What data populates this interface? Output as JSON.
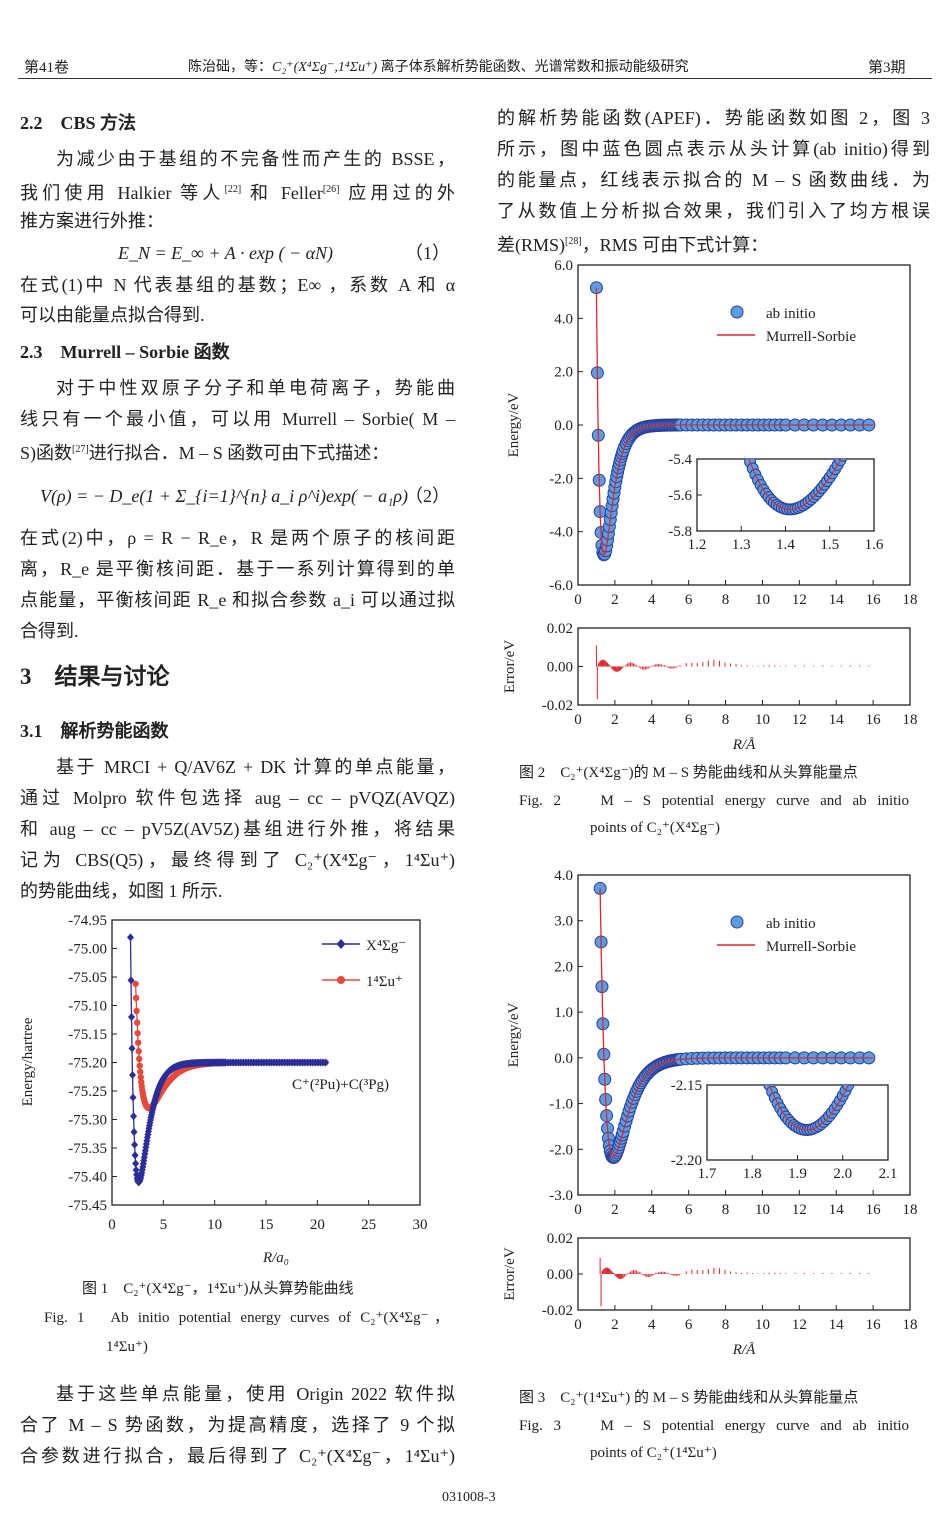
{
  "header": {
    "volume": "第41卷",
    "title_prefix": "陈治础，等：",
    "title_formula": "C₂⁺(X⁴Σg⁻,1⁴Σu⁺)",
    "title_suffix": "离子体系解析势能函数、光谱常数和振动能级研究",
    "issue": "第3期"
  },
  "left": {
    "s22": "2.2　CBS 方法",
    "p1": [
      "为减少由于基组的不完备性而产生的 BSSE，",
      "我们使用 Halkier 等人",
      "[22]",
      "和 Feller",
      "[26]",
      "应用过的外",
      "推方案进行外推："
    ],
    "eq1": "E_N = E_∞ + A · exp ( − αN)",
    "eq1_no": "（1）",
    "p2": [
      "在式(1)中 N 代表基组的基数；E∞ ，系数 A 和 α",
      "可以由能量点拟合得到."
    ],
    "s23": "2.3　Murrell – Sorbie 函数",
    "p3": [
      "对于中性双原子分子和单电荷离子，势能曲",
      "线只有一个最小值，可以用 Murrell – Sorbie( M –",
      "S)函数",
      "[27]",
      "进行拟合．M – S 函数可由下式描述："
    ],
    "eq2": "V(ρ) = − D_e(1 + Σ_{i=1}^{n} a_i ρ^i)exp( − a₁ρ)",
    "eq2_no": "（2）",
    "p4": [
      "在式(2)中，ρ = R − R_e，R 是两个原子的核间距",
      "离，R_e 是平衡核间距．基于一系列计算得到的单",
      "点能量，平衡核间距 R_e 和拟合参数 a_i 可以通过拟",
      "合得到."
    ],
    "s3": "3　结果与讨论",
    "s31": "3.1　解析势能函数",
    "p5": [
      "基于 MRCI + Q/AV6Z + DK 计算的单点能量，",
      "通过 Molpro 软件包选择 aug – cc – pVQZ(AVQZ)",
      "和 aug – cc – pV5Z(AV5Z)基组进行外推，将结果",
      "记为 CBS(Q5)，最终得到了 C₂⁺(X⁴Σg⁻，1⁴Σu⁺)",
      "的势能曲线，如图 1 所示."
    ],
    "fig1_cap_cn": "图 1　C₂⁺(X⁴Σg⁻，1⁴Σu⁺)从头算势能曲线",
    "fig1_cap_en1": "Fig. 1　Ab initio potential energy curves of C₂⁺(X⁴Σg⁻，",
    "fig1_cap_en2": "1⁴Σu⁺)",
    "p6": [
      "基于这些单点能量，使用 Origin 2022 软件拟",
      "合了 M – S 势函数，为提高精度，选择了 9 个拟",
      "合参数进行拟合，最后得到了 C₂⁺(X⁴Σg⁻，1⁴Σu⁺)"
    ]
  },
  "right": {
    "p1": [
      "的解析势能函数(APEF)．势能函数如图 2，图 3",
      "所示，图中蓝色圆点表示从头计算(ab initio)得到",
      "的能量点，红线表示拟合的 M – S 函数曲线．为",
      "了从数值上分析拟合效果，我们引入了均方根误",
      "差(RMS)",
      "[28]",
      "，RMS 可由下式计算："
    ],
    "fig2_cap_cn": "图 2　C₂⁺(X⁴Σg⁻)的 M – S 势能曲线和从头算能量点",
    "fig2_cap_en1": "Fig.  2　 M – S  potential  energy  curve  and  ab  initio",
    "fig2_cap_en2": "points of C₂⁺(X⁴Σg⁻)",
    "fig3_cap_cn": "图 3　C₂⁺(1⁴Σu⁺) 的 M – S 势能曲线和从头算能量点",
    "fig3_cap_en1": "Fig.  3　 M – S  potential  energy  curve  and  ab  initio",
    "fig3_cap_en2": "points of C₂⁺(1⁴Σu⁺)"
  },
  "footer": {
    "page": "031008-3"
  },
  "colors": {
    "blue": "#2b2e9a",
    "red": "#e8483a",
    "dot": "#5a9de0",
    "dot_edge": "#2c3d99",
    "fit": "#e0262b"
  },
  "chart_data": [
    {
      "id": "fig1",
      "type": "scatter-line",
      "xlabel": "R/a₀",
      "ylabel": "Energy/hartree",
      "xlim": [
        0,
        30
      ],
      "ylim": [
        -75.45,
        -74.95
      ],
      "xticks": [
        "0",
        "5",
        "10",
        "15",
        "20",
        "25",
        "30"
      ],
      "yticks": [
        "-74.95",
        "-75.00",
        "-75.05",
        "-75.10",
        "-75.15",
        "-75.20",
        "-75.25",
        "-75.30",
        "-75.35",
        "-75.40",
        "-75.45"
      ],
      "annotation": "C⁺(²Pu)+C(³Pg)",
      "legend": "top-right",
      "series": [
        {
          "name": "X⁴Σg⁻",
          "marker": "diamond",
          "asymptote": -75.2,
          "De": 0.21,
          "Re": 2.6,
          "a": 1.11,
          "r_start": 1.8,
          "r_end": 30
        },
        {
          "name": "1⁴Σu⁺",
          "marker": "circle",
          "asymptote": -75.2,
          "De": 0.08,
          "Re": 3.6,
          "a": 0.75,
          "r_start": 2.3,
          "r_end": 20.8
        }
      ]
    },
    {
      "id": "fig2",
      "type": "scatter-line",
      "xlabel": "R/Å",
      "ylabel": "Energy/eV",
      "error_ylabel": "Error/eV",
      "xlim": [
        0,
        18
      ],
      "ylim": [
        -7,
        7
      ],
      "xticks": [
        "0",
        "2",
        "4",
        "6",
        "8",
        "10",
        "12",
        "14",
        "16",
        "18"
      ],
      "yticks": [
        "6.0",
        "4.0",
        "2.0",
        "0.0",
        "-2.0",
        "-4.0",
        "-6.0"
      ],
      "error_yticks": [
        "0.02",
        "0.00",
        "-0.02"
      ],
      "error_range": [
        -0.017,
        0.011
      ],
      "legend": [
        "ab initio",
        "Murrell-Sorbie"
      ],
      "De": 5.68,
      "Re": 1.41,
      "a": 2.17,
      "r_start": 1.0,
      "r_end": 16,
      "inset": {
        "xlim": [
          1.2,
          1.6
        ],
        "ylim": [
          -5.8,
          -5.4
        ],
        "xticks": [
          "1.2",
          "1.3",
          "1.4",
          "1.5",
          "1.6"
        ],
        "yticks": [
          "-5.4",
          "-5.6",
          "-5.8"
        ]
      }
    },
    {
      "id": "fig3",
      "type": "scatter-line",
      "xlabel": "R/Å",
      "ylabel": "Energy/eV",
      "error_ylabel": "Error/eV",
      "xlim": [
        0,
        18
      ],
      "ylim": [
        -3,
        4
      ],
      "xticks": [
        "0",
        "2",
        "4",
        "6",
        "8",
        "10",
        "12",
        "14",
        "16",
        "18"
      ],
      "yticks": [
        "4.0",
        "3.0",
        "2.0",
        "1.0",
        "0.0",
        "-1.0",
        "-2.0",
        "-3.0"
      ],
      "error_yticks": [
        "0.02",
        "0.00",
        "-0.02"
      ],
      "error_range": [
        -0.018,
        0.009
      ],
      "legend": [
        "ab initio",
        "Murrell-Sorbie"
      ],
      "De": 2.18,
      "Re": 1.92,
      "a": 1.35,
      "r_start": 1.2,
      "r_end": 16,
      "inset": {
        "xlim": [
          1.7,
          2.1
        ],
        "ylim": [
          -2.2,
          -2.15
        ],
        "xticks": [
          "1.7",
          "1.8",
          "1.9",
          "2.0",
          "2.1"
        ],
        "yticks": [
          "-2.15",
          "-2.20"
        ]
      }
    }
  ]
}
